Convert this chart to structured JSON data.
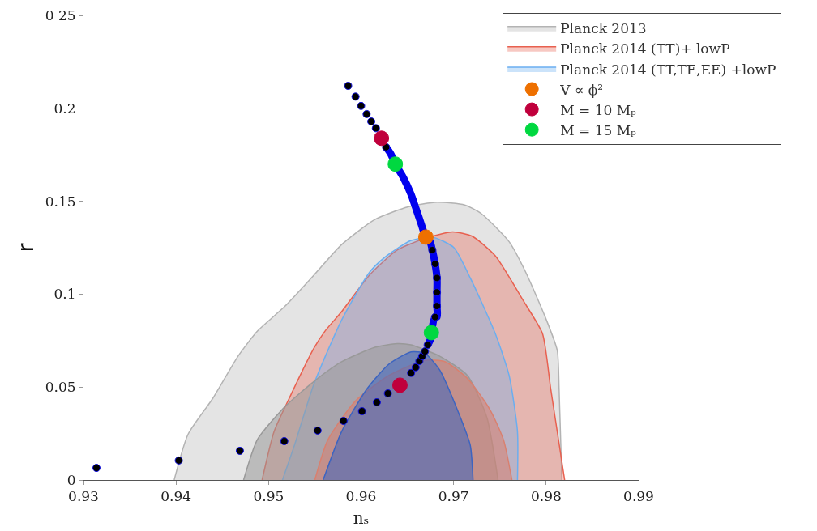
{
  "chart_data": {
    "type": "area",
    "xlabel": "nₛ",
    "ylabel": "r",
    "xlim": [
      0.93,
      0.99
    ],
    "xticks": [
      0.93,
      0.94,
      0.95,
      0.96,
      0.97,
      0.98,
      0.99
    ],
    "ylim": [
      0,
      0.25
    ],
    "yticks": [
      0,
      0.05,
      0.1,
      0.15,
      0.2,
      {
        "value": 0.25,
        "label": "0 25"
      }
    ],
    "grid": false,
    "legend": "top right",
    "series": [
      {
        "name": "Planck 2013",
        "color": "#b3b3b3",
        "x": [
          0.9398,
          0.9413,
          0.944,
          0.9467,
          0.9488,
          0.9518,
          0.9549,
          0.9579,
          0.9615,
          0.9651,
          0.9682,
          0.9712,
          0.973,
          0.976,
          0.9778,
          0.9799,
          0.9812,
          0.9814,
          0.9817
        ],
        "values": [
          0,
          0.0246,
          0.0441,
          0.0666,
          0.0801,
          0.0936,
          0.1102,
          0.1267,
          0.1402,
          0.147,
          0.1495,
          0.148,
          0.1433,
          0.1282,
          0.1117,
          0.0877,
          0.0697,
          0.0488,
          0
        ]
      },
      {
        "name": "Planck 2014 (TT)+ lowP",
        "color": "#e8604f",
        "x": [
          0.9493,
          0.9506,
          0.9524,
          0.9549,
          0.9561,
          0.9579,
          0.9609,
          0.9639,
          0.9669,
          0.9699,
          0.972,
          0.9745,
          0.9775,
          0.9796,
          0.9805,
          0.982
        ],
        "values": [
          0,
          0.0261,
          0.0457,
          0.0709,
          0.0801,
          0.0906,
          0.1102,
          0.1237,
          0.13,
          0.1335,
          0.1312,
          0.1206,
          0.0967,
          0.0788,
          0.0488,
          0
        ]
      },
      {
        "name": "Planck 2014 (TT,TE,EE) +lowP",
        "color": "#6aaef0",
        "x": [
          0.9515,
          0.9528,
          0.9549,
          0.9579,
          0.9609,
          0.9624,
          0.9654,
          0.9678,
          0.97,
          0.9718,
          0.9745,
          0.976,
          0.9769,
          0.9769
        ],
        "values": [
          0,
          0.0187,
          0.0516,
          0.0861,
          0.1117,
          0.1192,
          0.1289,
          0.1305,
          0.1252,
          0.1087,
          0.0788,
          0.0562,
          0.0261,
          0
        ]
      },
      {
        "color": "#999999",
        "x": [
          0.9473,
          0.9488,
          0.9518,
          0.9549,
          0.9579,
          0.9615,
          0.9639,
          0.9654,
          0.9685,
          0.9715,
          0.9736,
          0.9748
        ],
        "values": [
          0,
          0.0218,
          0.0396,
          0.053,
          0.0636,
          0.0714,
          0.0734,
          0.0727,
          0.0666,
          0.0562,
          0.0335,
          0
        ]
      },
      {
        "color": "#d9806f",
        "x": [
          0.955,
          0.9564,
          0.9594,
          0.963,
          0.9669,
          0.9691,
          0.9715,
          0.9739,
          0.9754,
          0.9763
        ],
        "values": [
          0,
          0.0215,
          0.0426,
          0.0562,
          0.0644,
          0.0636,
          0.0546,
          0.0381,
          0.0215,
          0
        ]
      },
      {
        "color": "#3c64c0",
        "x": [
          0.9559,
          0.9579,
          0.9606,
          0.963,
          0.9654,
          0.9669,
          0.9685,
          0.9705,
          0.9718,
          0.9721
        ],
        "values": [
          0,
          0.0261,
          0.0488,
          0.0623,
          0.0689,
          0.0681,
          0.0592,
          0.0366,
          0.0187,
          0
        ]
      },
      {
        "type": "line",
        "color": "#0000ee",
        "x": [
          0.9627,
          0.9632,
          0.9637,
          0.9646,
          0.9654,
          0.9659,
          0.9665,
          0.967,
          0.9674,
          0.9677,
          0.968,
          0.9682,
          0.9682,
          0.9682,
          0.9682,
          0.968,
          0.9676,
          0.9675,
          0.9672
        ],
        "values": [
          0.1791,
          0.1755,
          0.17,
          0.1624,
          0.1537,
          0.1465,
          0.1377,
          0.1307,
          0.1289,
          0.1237,
          0.1163,
          0.1087,
          0.101,
          0.0936,
          0.0877,
          0.0877,
          0.0793,
          0.0757,
          0.0727
        ]
      },
      {
        "type": "scatter",
        "marker": "circle",
        "color": "#000000",
        "x": [
          0.9314,
          0.9403,
          0.9469,
          0.9517,
          0.9553,
          0.9581,
          0.9601,
          0.9617,
          0.9629,
          0.9638,
          0.9654,
          0.9659,
          0.9663,
          0.9666,
          0.9669,
          0.9672,
          0.9675,
          0.968,
          0.9682,
          0.9682,
          0.9682,
          0.968,
          0.9677,
          0.9674,
          0.9627,
          0.9616,
          0.9611,
          0.9606,
          0.96,
          0.9594,
          0.9586
        ],
        "values": [
          0.0065,
          0.0105,
          0.0157,
          0.0209,
          0.0266,
          0.0318,
          0.037,
          0.0418,
          0.0466,
          null,
          0.0576,
          0.0606,
          0.064,
          0.0666,
          0.0692,
          0.0727,
          null,
          0.0877,
          0.0936,
          0.101,
          0.1087,
          0.1163,
          0.1237,
          null,
          0.1791,
          0.1893,
          0.1929,
          0.1969,
          0.2013,
          0.2063,
          0.2121
        ]
      },
      {
        "name": "V ∝ ϕ²",
        "type": "scatter",
        "marker": "circle",
        "color": "#ee7000",
        "x": [
          0.967
        ],
        "values": [
          0.1307
        ]
      },
      {
        "name": "M = 10 Mₚ",
        "type": "scatter",
        "marker": "circle",
        "color": "#c0003c",
        "x": [
          0.9622,
          0.9642
        ],
        "values": [
          0.1839,
          0.051
        ]
      },
      {
        "name": "M = 15 Mₚ",
        "type": "scatter",
        "marker": "circle",
        "color": "#00d840",
        "x": [
          0.9637,
          0.9676
        ],
        "values": [
          0.17,
          0.0793
        ]
      }
    ]
  }
}
